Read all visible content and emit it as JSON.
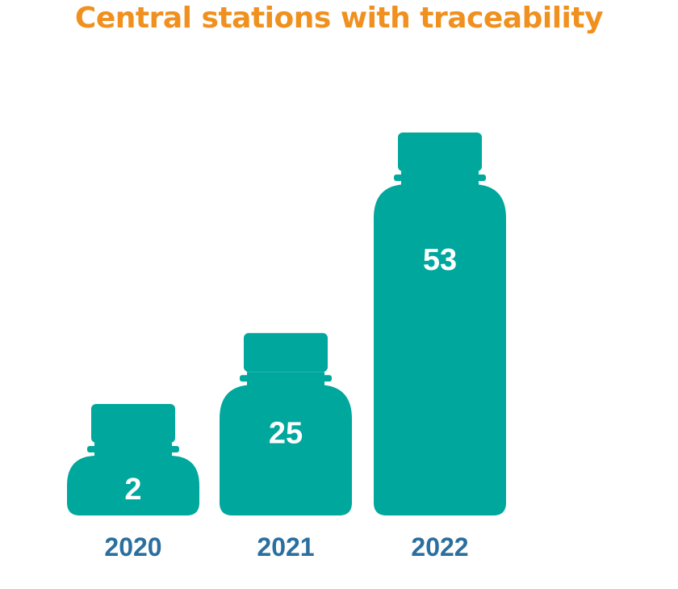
{
  "title": "Central stations with traceability",
  "colors": {
    "title": "#f0901f",
    "bottle": "#00a79d",
    "year": "#2b6f9e",
    "value": "#ffffff"
  },
  "chart_data": {
    "type": "bar",
    "categories": [
      "2020",
      "2021",
      "2022"
    ],
    "values": [
      2,
      25,
      53
    ],
    "title": "Central stations with traceability",
    "xlabel": "",
    "ylabel": "",
    "grid": false
  }
}
